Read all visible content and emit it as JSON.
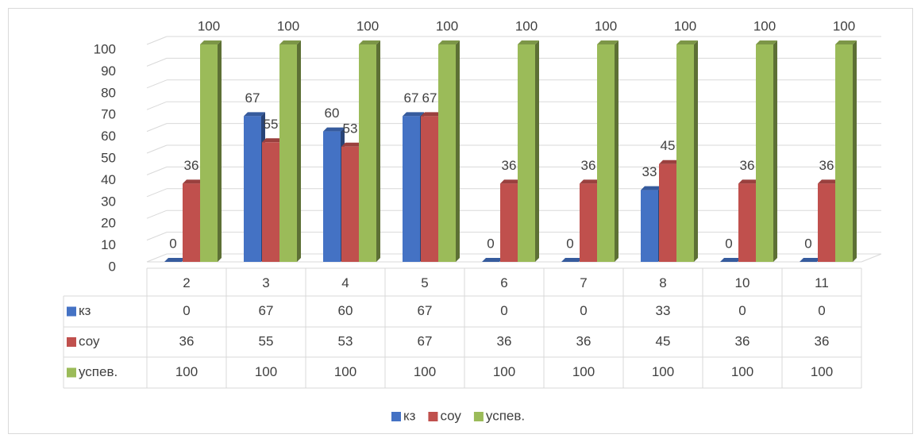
{
  "chart_data": {
    "type": "bar3d",
    "categories": [
      "2",
      "3",
      "4",
      "5",
      "6",
      "7",
      "8",
      "10",
      "11"
    ],
    "series": [
      {
        "name": "кз",
        "color": "#4472c4",
        "values": [
          0,
          67,
          60,
          67,
          0,
          0,
          33,
          0,
          0
        ]
      },
      {
        "name": "соу",
        "color": "#c0504d",
        "values": [
          36,
          55,
          53,
          67,
          36,
          36,
          45,
          36,
          36
        ]
      },
      {
        "name": "успев.",
        "color": "#9bbb59",
        "values": [
          100,
          100,
          100,
          100,
          100,
          100,
          100,
          100,
          100
        ]
      }
    ],
    "ylim": [
      0,
      100
    ],
    "yticks": [
      0,
      10,
      20,
      30,
      40,
      50,
      60,
      70,
      80,
      90,
      100
    ],
    "grid": true,
    "legend": "bottom"
  }
}
